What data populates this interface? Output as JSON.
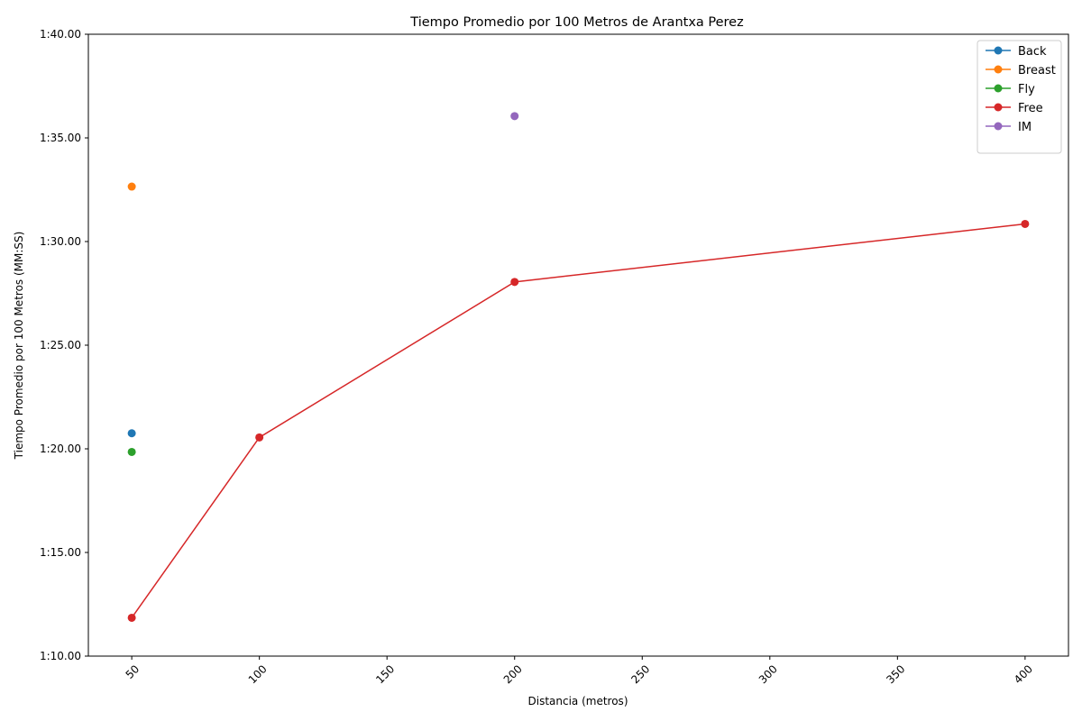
{
  "chart_data": {
    "type": "line",
    "title": "Tiempo Promedio por 100 Metros de Arantxa Perez",
    "xlabel": "Distancia (metros)",
    "ylabel": "Tiempo Promedio por 100 Metros (MM:SS)",
    "xlim": [
      33,
      417
    ],
    "ylim": [
      70,
      100
    ],
    "x_ticks": [
      50,
      100,
      150,
      200,
      250,
      300,
      350,
      400
    ],
    "y_ticks": [
      {
        "value": 70,
        "label": "1:10.00"
      },
      {
        "value": 75,
        "label": "1:15.00"
      },
      {
        "value": 80,
        "label": "1:20.00"
      },
      {
        "value": 85,
        "label": "1:25.00"
      },
      {
        "value": 90,
        "label": "1:30.00"
      },
      {
        "value": 95,
        "label": "1:35.00"
      },
      {
        "value": 100,
        "label": "1:40.00"
      }
    ],
    "legend_position": "top-right",
    "series": [
      {
        "name": "Back",
        "color": "#1f77b4",
        "x": [
          50
        ],
        "values": [
          80.75
        ]
      },
      {
        "name": "Breast",
        "color": "#ff7f0e",
        "x": [
          50
        ],
        "values": [
          92.65
        ]
      },
      {
        "name": "Fly",
        "color": "#2ca02c",
        "x": [
          50
        ],
        "values": [
          79.85
        ]
      },
      {
        "name": "Free",
        "color": "#d62728",
        "x": [
          50,
          100,
          200,
          400
        ],
        "values": [
          71.85,
          80.55,
          88.05,
          90.85
        ]
      },
      {
        "name": "IM",
        "color": "#9467bd",
        "x": [
          200
        ],
        "values": [
          96.05
        ]
      }
    ]
  }
}
